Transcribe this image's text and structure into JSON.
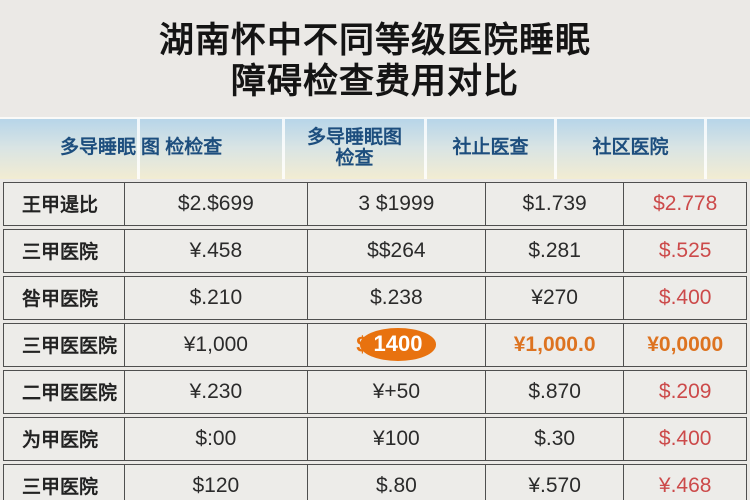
{
  "title": {
    "line1": "湖南怀中不同等级医院睡眠",
    "line2": "障碍检查费用对比"
  },
  "header": {
    "columns": [
      {
        "line1": "多导睡眠",
        "line2": ""
      },
      {
        "line1": "图 检检查",
        "line2": ""
      },
      {
        "line1": "多导睡眠图",
        "line2": "检查"
      },
      {
        "line1": "社止医查",
        "line2": ""
      },
      {
        "line1": "社区医院",
        "line2": ""
      },
      {
        "line1": "",
        "line2": ""
      }
    ]
  },
  "table": {
    "rows": [
      {
        "label": "王甲遈比",
        "values": [
          {
            "text": "$2.$699",
            "style": "dark"
          },
          {
            "text": "3 $1999",
            "style": "dark"
          },
          {
            "text": "$1.739",
            "style": "dark"
          },
          {
            "text": "$2.778",
            "style": "red"
          }
        ]
      },
      {
        "label": "三甲医院",
        "values": [
          {
            "text": "¥.458",
            "style": "dark"
          },
          {
            "text": "$$264",
            "style": "dark"
          },
          {
            "text": "$.281",
            "style": "dark"
          },
          {
            "text": "$.525",
            "style": "red"
          }
        ]
      },
      {
        "label": "咎甲医院",
        "values": [
          {
            "text": "$.210",
            "style": "dark"
          },
          {
            "text": "$.238",
            "style": "dark"
          },
          {
            "text": "¥270",
            "style": "dark"
          },
          {
            "text": "$.400",
            "style": "red"
          }
        ]
      },
      {
        "label": "三甲医医院",
        "values": [
          {
            "text": "¥1,000",
            "style": "dark"
          },
          {
            "prefix": "$",
            "oval": "1400",
            "style": "oval"
          },
          {
            "text": "¥1,000.0",
            "style": "orange"
          },
          {
            "text": "¥0,0000",
            "style": "orange"
          }
        ]
      },
      {
        "label": "二甲医医院",
        "values": [
          {
            "text": "¥.230",
            "style": "dark"
          },
          {
            "text": "¥+50",
            "style": "dark"
          },
          {
            "text": "$.870",
            "style": "dark"
          },
          {
            "text": "$.209",
            "style": "red"
          }
        ]
      },
      {
        "label": "为甲医院",
        "values": [
          {
            "text": "$:00",
            "style": "dark"
          },
          {
            "text": "¥100",
            "style": "dark"
          },
          {
            "text": "$.30",
            "style": "dark"
          },
          {
            "text": "$.400",
            "style": "red"
          }
        ]
      },
      {
        "label": "三甲医院",
        "values": [
          {
            "text": "$120",
            "style": "dark"
          },
          {
            "text": "$.80",
            "style": "dark"
          },
          {
            "text": "¥.570",
            "style": "dark"
          },
          {
            "text": "¥.468",
            "style": "red"
          }
        ]
      }
    ]
  },
  "colors": {
    "page_bg": "#ebe9e6",
    "header_gradient_top": "#b7d5e9",
    "header_gradient_bottom": "#f2ecd2",
    "header_text": "#1d4e7e",
    "row_bg": "#edece9",
    "row_border": "#4f4f4f",
    "value_red": "#cc4a4a",
    "value_orange": "#dd7320",
    "oval_bg": "#e8720f",
    "oval_text": "#ffffff"
  }
}
